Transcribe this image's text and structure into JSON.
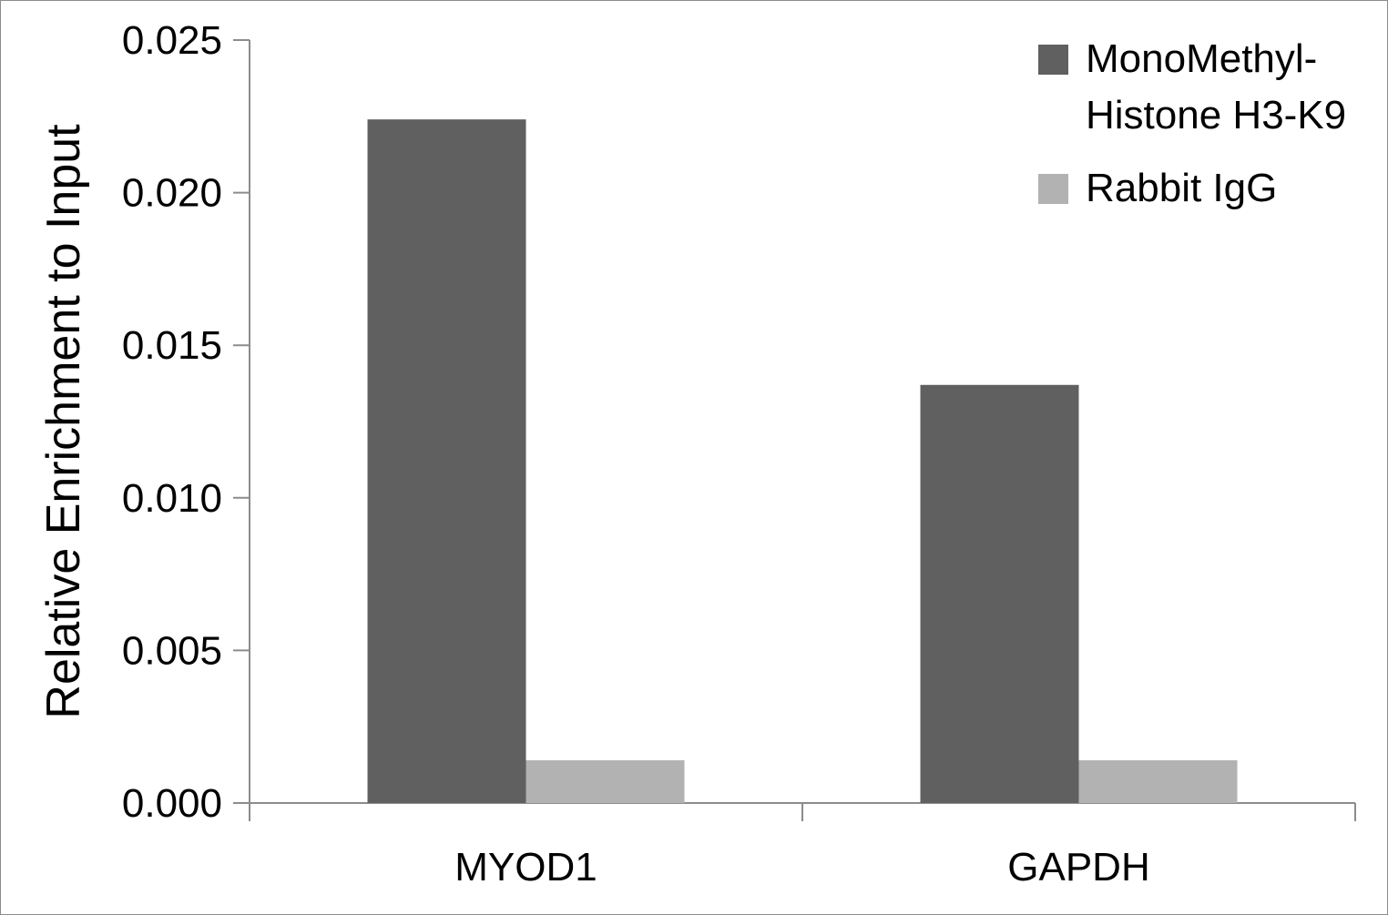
{
  "chart_data": {
    "type": "bar",
    "title": "",
    "xlabel": "",
    "ylabel": "Relative Enrichment to Input",
    "categories": [
      "MYOD1",
      "GAPDH"
    ],
    "series": [
      {
        "name": "MonoMethyl-Histone H3-K9",
        "legend_lines": [
          "MonoMethyl-",
          "Histone H3-K9"
        ],
        "color": "#606060",
        "values": [
          0.0224,
          0.0137
        ]
      },
      {
        "name": "Rabbit IgG",
        "legend_lines": [
          "Rabbit IgG"
        ],
        "color": "#b2b2b2",
        "values": [
          0.0014,
          0.0014
        ]
      }
    ],
    "ylim": [
      0,
      0.025
    ],
    "yticks": [
      "0.000",
      "0.005",
      "0.010",
      "0.015",
      "0.020",
      "0.025"
    ],
    "grid": false,
    "legend_position": "top-right"
  }
}
